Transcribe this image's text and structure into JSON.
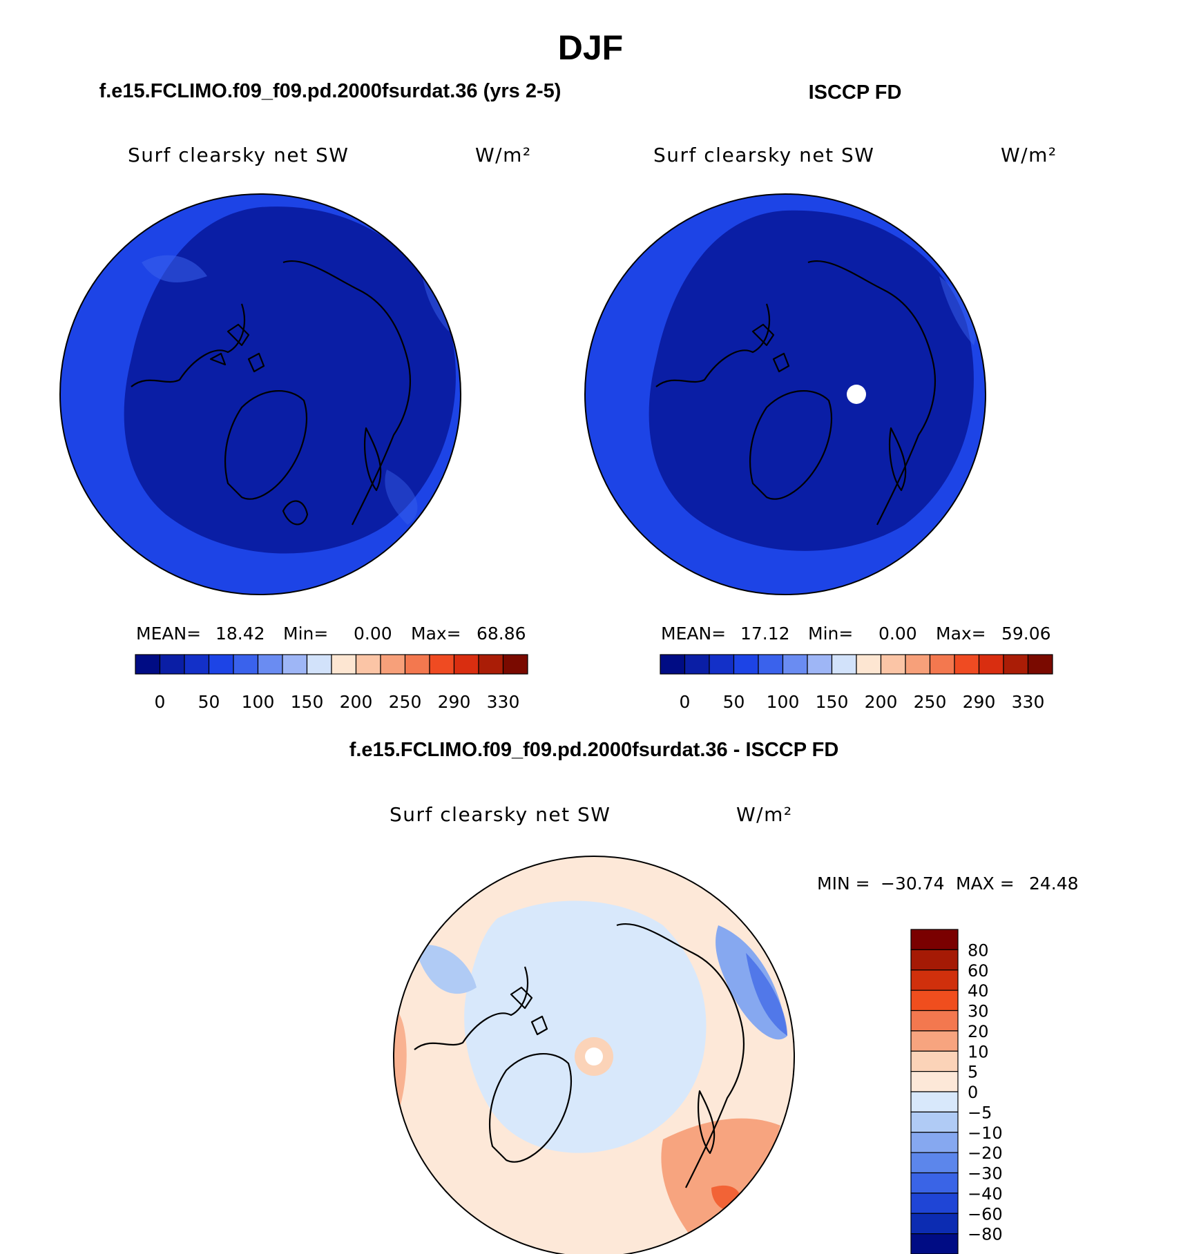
{
  "main_title": "DJF",
  "panels": [
    {
      "case_title": "f.e15.FCLIMO.f09_f09.pd.2000fsurdat.36 (yrs 2-5)",
      "variable": "Surf clearsky net SW",
      "units": "W/m²",
      "stats": {
        "mean_label": "MEAN=",
        "mean": "18.42",
        "min_label": "Min=",
        "min": "0.00",
        "max_label": "Max=",
        "max": "68.86"
      }
    },
    {
      "case_title": "ISCCP FD",
      "variable": "Surf clearsky net SW",
      "units": "W/m²",
      "stats": {
        "mean_label": "MEAN=",
        "mean": "17.12",
        "min_label": "Min=",
        "min": "0.00",
        "max_label": "Max=",
        "max": "59.06"
      }
    }
  ],
  "diff_panel": {
    "case_title": "f.e15.FCLIMO.f09_f09.pd.2000fsurdat.36 - ISCCP FD",
    "variable": "Surf clearsky net SW",
    "units": "W/m²",
    "min_label": "MIN =",
    "min": "−30.74",
    "max_label": "MAX =",
    "max": "24.48"
  },
  "chart_data": [
    {
      "type": "heatmap",
      "projection": "north polar stereographic",
      "title": "f.e15.FCLIMO.f09_f09.pd.2000fsurdat.36 (yrs 2-5)",
      "variable": "Surf clearsky net SW",
      "units": "W/m²",
      "mean": 18.42,
      "min": 0.0,
      "max": 68.86,
      "colorbar_ticks": [
        "0",
        "50",
        "100",
        "150",
        "200",
        "250",
        "290",
        "330"
      ],
      "colorbar_colors": [
        "#000c84",
        "#0a1ea5",
        "#1330c8",
        "#1d44e6",
        "#3a62ec",
        "#6a8cf2",
        "#9eb6f6",
        "#d2e2fa",
        "#fde6d2",
        "#fbc5a6",
        "#f7a07a",
        "#f3784f",
        "#ef4b22",
        "#d92e10",
        "#aa1d06",
        "#7a0a00"
      ],
      "dominant_levels": {
        "polar_interior": "0-25",
        "outer_ring": "25-50"
      }
    },
    {
      "type": "heatmap",
      "projection": "north polar stereographic",
      "title": "ISCCP FD",
      "variable": "Surf clearsky net SW",
      "units": "W/m²",
      "mean": 17.12,
      "min": 0.0,
      "max": 59.06,
      "colorbar_ticks": [
        "0",
        "50",
        "100",
        "150",
        "200",
        "250",
        "290",
        "330"
      ],
      "colorbar_colors": [
        "#000c84",
        "#0a1ea5",
        "#1330c8",
        "#1d44e6",
        "#3a62ec",
        "#6a8cf2",
        "#9eb6f6",
        "#d2e2fa",
        "#fde6d2",
        "#fbc5a6",
        "#f7a07a",
        "#f3784f",
        "#ef4b22",
        "#d92e10",
        "#aa1d06",
        "#7a0a00"
      ],
      "dominant_levels": {
        "polar_interior": "0-25",
        "outer_ring": "25-50"
      }
    },
    {
      "type": "heatmap",
      "projection": "north polar stereographic",
      "title": "f.e15.FCLIMO.f09_f09.pd.2000fsurdat.36 - ISCCP FD",
      "variable": "Surf clearsky net SW",
      "units": "W/m²",
      "min": -30.74,
      "max": 24.48,
      "colorbar_ticks": [
        "80",
        "60",
        "40",
        "30",
        "20",
        "10",
        "5",
        "0",
        "−5",
        "−10",
        "−20",
        "−30",
        "−40",
        "−60",
        "−80"
      ],
      "colorbar_colors": [
        "#7a0000",
        "#a51a05",
        "#d0300c",
        "#f04e1e",
        "#f3784f",
        "#f7a47f",
        "#fbd3b8",
        "#fde8d8",
        "#d8e8fb",
        "#b0cbf5",
        "#86a8f0",
        "#5c86eb",
        "#3a64e6",
        "#1f45d6",
        "#0c2cb2",
        "#000c84"
      ]
    }
  ]
}
